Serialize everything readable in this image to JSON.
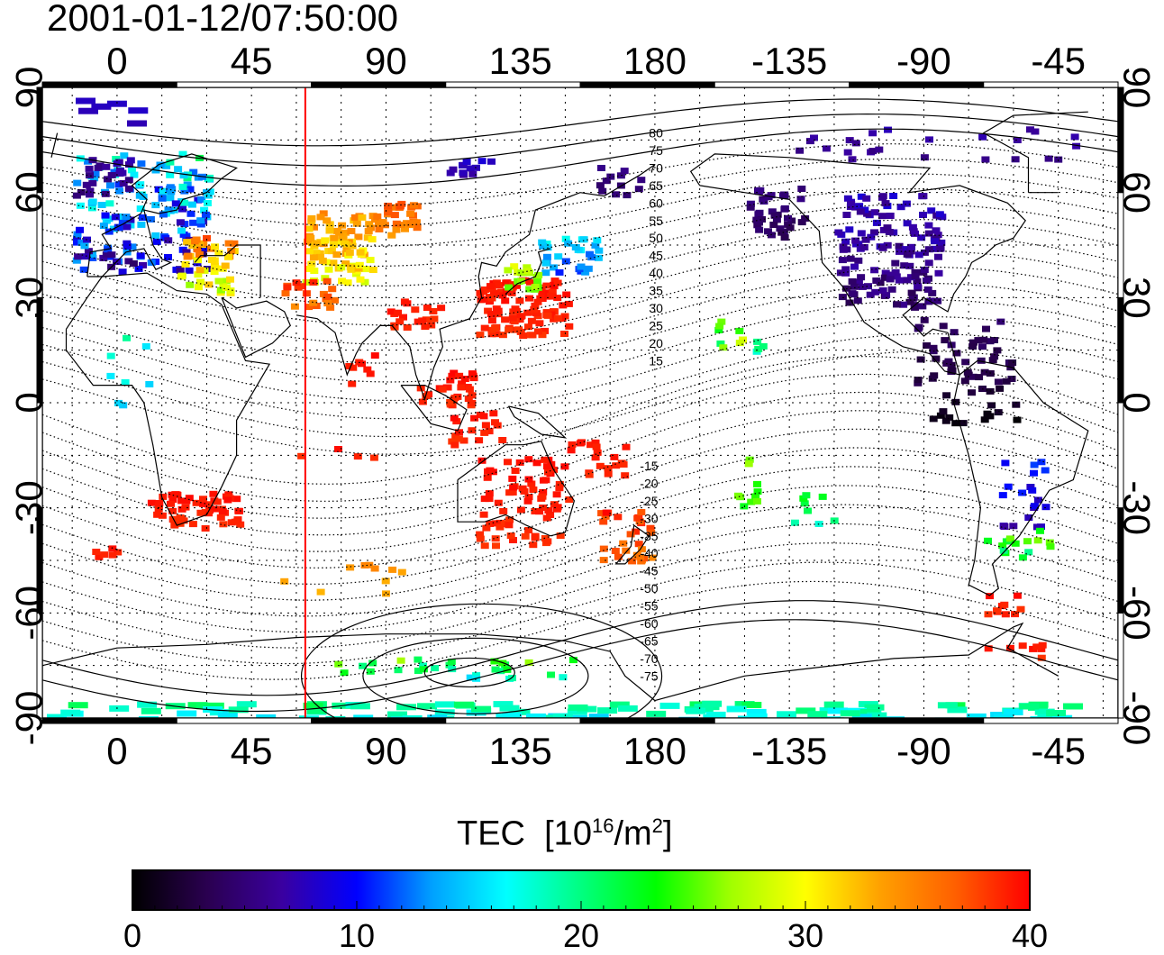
{
  "timestamp": "2001-01-12/07:50:00",
  "map": {
    "lon_min": -25,
    "lon_max": 335,
    "lat_min": -90,
    "lat_max": 90,
    "grid": true,
    "top_ticks": [
      "0",
      "45",
      "90",
      "135",
      "180",
      "-135",
      "-90",
      "-45"
    ],
    "bottom_ticks": [
      "0",
      "45",
      "90",
      "135",
      "180",
      "-135",
      "-90",
      "-45"
    ],
    "left_ticks": [
      "90",
      "60",
      "30",
      "0",
      "-30",
      "-60",
      "-90"
    ],
    "right_ticks": [
      "90",
      "60",
      "30",
      "0",
      "-30",
      "-60",
      "-90"
    ],
    "tick_lons": [
      0,
      45,
      90,
      135,
      180,
      225,
      270,
      315
    ],
    "tick_lats": [
      90,
      60,
      30,
      0,
      -30,
      -60,
      -90
    ],
    "terminator_lon": 63,
    "terminator_color": "#ff0000"
  },
  "contour_labels": [
    "80",
    "75",
    "70",
    "65",
    "60",
    "55",
    "50",
    "45",
    "40",
    "35",
    "30",
    "25",
    "20",
    "15",
    "-15",
    "-20",
    "-25",
    "-30",
    "-35",
    "-40",
    "-45",
    "-50",
    "-55",
    "-60",
    "-65",
    "-70",
    "-75"
  ],
  "colorbar": {
    "title_main": "TEC",
    "title_unit_open": "[10",
    "title_exp": "16",
    "title_unit_mid": "/m",
    "title_exp2": "2",
    "title_unit_close": "]",
    "min": 0,
    "max": 40,
    "ticks": [
      "0",
      "10",
      "20",
      "30",
      "40"
    ],
    "colors": [
      "#000000",
      "#2a0050",
      "#3a00a0",
      "#0000ff",
      "#00a0ff",
      "#00ffff",
      "#00ff80",
      "#00ff00",
      "#a0ff00",
      "#ffff00",
      "#ffa000",
      "#ff6000",
      "#ff0000"
    ]
  }
}
